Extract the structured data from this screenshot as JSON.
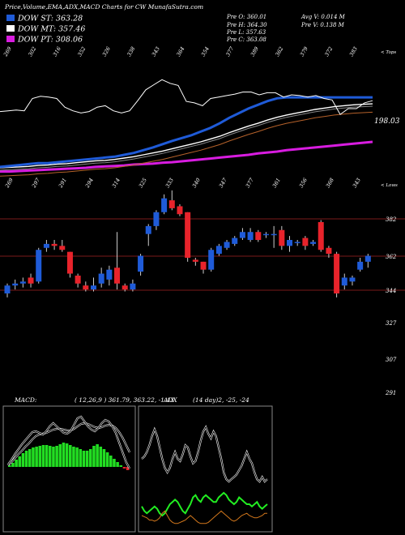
{
  "header": {
    "title": "Price,Volume,EMA,ADX,MACD Charts for CW MunafaSutra.com",
    "legend": [
      {
        "label": "DOW ST: 363.28",
        "color": "#1f5bd8"
      },
      {
        "label": "DOW MT: 357.46",
        "color": "#ffffff"
      },
      {
        "label": "DOW PT: 308.06",
        "color": "#d81ce0"
      }
    ],
    "stats": {
      "pre_o": "Pre  O: 360.01",
      "pre_h": "Pre  H: 364.30",
      "pre_l": "Pre  L: 357.63",
      "pre_c": "Pre  C: 363.08",
      "avg_v": "Avg V: 0.014  M",
      "pre_v": "Pre  V: 0.138  M"
    }
  },
  "colors": {
    "bg": "#000000",
    "up": "#1f5bd8",
    "down": "#e8232b",
    "ema_short": "#1f5bd8",
    "ema_mid": "#ffffff",
    "ema_long": "#b5612a",
    "ema_pt": "#d81ce0",
    "grid": "#7a1a1a",
    "macd_fill": "#22dd22",
    "adx_green": "#22ee22",
    "adx_orange": "#d4781c"
  },
  "chart_data": [
    {
      "type": "line",
      "panel": "ema",
      "top_labels": [
        "269",
        "302",
        "316",
        "352",
        "326",
        "338",
        "343",
        "364",
        "354",
        "377",
        "389",
        "362",
        "379",
        "372",
        "383"
      ],
      "bottom_labels": [
        "269",
        "297",
        "291",
        "294",
        "314",
        "325",
        "333",
        "340",
        "347",
        "377",
        "361",
        "356",
        "368",
        "343"
      ],
      "corner_top": "< Tops",
      "corner_bottom": "< Lows",
      "price_label": "198.03",
      "series": [
        {
          "name": "DOW ST",
          "values": [
            206,
            208,
            210,
            212,
            214,
            214,
            216,
            218,
            220,
            222,
            224,
            226,
            228,
            232,
            236,
            242,
            248,
            255,
            262,
            268,
            274,
            282,
            290,
            300,
            312,
            322,
            332,
            340,
            348,
            354,
            356,
            356,
            356,
            356,
            356,
            356,
            356,
            356,
            356,
            356
          ]
        },
        {
          "name": "DOW MT",
          "values": [
            204,
            205,
            206,
            207,
            209,
            210,
            212,
            213,
            215,
            217,
            219,
            220,
            222,
            225,
            228,
            232,
            236,
            240,
            245,
            250,
            255,
            260,
            266,
            272,
            280,
            287,
            294,
            300,
            307,
            313,
            318,
            322,
            326,
            330,
            333,
            336,
            338,
            340,
            341,
            342
          ]
        },
        {
          "name": "DOW PT",
          "values": [
            196,
            196,
            197,
            198,
            199,
            200,
            201,
            202,
            203,
            204,
            206,
            207,
            208,
            209,
            211,
            212,
            213,
            215,
            216,
            218,
            220,
            222,
            224,
            226,
            228,
            230,
            232,
            235,
            237,
            239,
            242,
            244,
            246,
            248,
            250,
            252,
            254,
            256,
            258,
            260
          ]
        }
      ]
    },
    {
      "type": "candlestick",
      "panel": "price",
      "y_ticks": [
        "382",
        "362",
        "344",
        "327",
        "307",
        "291"
      ],
      "candles": [
        {
          "o": 344,
          "c": 348,
          "h": 349,
          "l": 342
        },
        {
          "o": 348,
          "c": 349,
          "h": 351,
          "l": 346
        },
        {
          "o": 349,
          "c": 350,
          "h": 352,
          "l": 347
        },
        {
          "o": 352,
          "c": 349,
          "h": 354,
          "l": 347
        },
        {
          "o": 350,
          "c": 366,
          "h": 367,
          "l": 349
        },
        {
          "o": 367,
          "c": 369,
          "h": 371,
          "l": 365
        },
        {
          "o": 369,
          "c": 368,
          "h": 371,
          "l": 366
        },
        {
          "o": 368,
          "c": 366,
          "h": 371,
          "l": 365
        },
        {
          "o": 365,
          "c": 354,
          "h": 365,
          "l": 352
        },
        {
          "o": 353,
          "c": 349,
          "h": 354,
          "l": 347
        },
        {
          "o": 348,
          "c": 346,
          "h": 350,
          "l": 345
        },
        {
          "o": 346,
          "c": 348,
          "h": 352,
          "l": 345
        },
        {
          "o": 349,
          "c": 354,
          "h": 357,
          "l": 347
        },
        {
          "o": 351,
          "c": 356,
          "h": 358,
          "l": 348
        },
        {
          "o": 357,
          "c": 349,
          "h": 375,
          "l": 346
        },
        {
          "o": 348,
          "c": 346,
          "h": 349,
          "l": 345
        },
        {
          "o": 346,
          "c": 349,
          "h": 351,
          "l": 345
        },
        {
          "o": 355,
          "c": 363,
          "h": 364,
          "l": 353
        },
        {
          "o": 374,
          "c": 378,
          "h": 379,
          "l": 368
        },
        {
          "o": 378,
          "c": 385,
          "h": 386,
          "l": 376
        },
        {
          "o": 385,
          "c": 392,
          "h": 394,
          "l": 384
        },
        {
          "o": 391,
          "c": 387,
          "h": 396,
          "l": 386
        },
        {
          "o": 388,
          "c": 384,
          "h": 389,
          "l": 383
        },
        {
          "o": 385,
          "c": 362,
          "h": 385,
          "l": 360
        },
        {
          "o": 361,
          "c": 360,
          "h": 362,
          "l": 358
        },
        {
          "o": 360,
          "c": 356,
          "h": 360,
          "l": 354
        },
        {
          "o": 356,
          "c": 366,
          "h": 367,
          "l": 355
        },
        {
          "o": 364,
          "c": 368,
          "h": 369,
          "l": 363
        },
        {
          "o": 367,
          "c": 370,
          "h": 371,
          "l": 366
        },
        {
          "o": 369,
          "c": 372,
          "h": 373,
          "l": 368
        },
        {
          "o": 372,
          "c": 375,
          "h": 377,
          "l": 371
        },
        {
          "o": 371,
          "c": 375,
          "h": 377,
          "l": 370
        },
        {
          "o": 375,
          "c": 371,
          "h": 376,
          "l": 370
        },
        {
          "o": 374,
          "c": 374,
          "h": 375,
          "l": 372
        },
        {
          "o": 374,
          "c": 374,
          "h": 378,
          "l": 367
        },
        {
          "o": 376,
          "c": 368,
          "h": 378,
          "l": 366
        },
        {
          "o": 368,
          "c": 371,
          "h": 373,
          "l": 365
        },
        {
          "o": 370,
          "c": 370,
          "h": 371,
          "l": 368
        },
        {
          "o": 372,
          "c": 368,
          "h": 373,
          "l": 366
        },
        {
          "o": 369,
          "c": 370,
          "h": 371,
          "l": 368
        },
        {
          "o": 380,
          "c": 366,
          "h": 381,
          "l": 365
        },
        {
          "o": 367,
          "c": 364,
          "h": 368,
          "l": 362
        },
        {
          "o": 364,
          "c": 344,
          "h": 365,
          "l": 342
        },
        {
          "o": 348,
          "c": 352,
          "h": 354,
          "l": 346
        },
        {
          "o": 350,
          "c": 352,
          "h": 353,
          "l": 348
        },
        {
          "o": 356,
          "c": 360,
          "h": 362,
          "l": 355
        },
        {
          "o": 360,
          "c": 363,
          "h": 364,
          "l": 357
        }
      ]
    },
    {
      "type": "line",
      "panel": "macd",
      "label": "MACD:",
      "params": "( 12,26,9 ) 361.79, 363.22, -1.43",
      "histogram": [
        2,
        5,
        9,
        13,
        17,
        20,
        22,
        24,
        25,
        26,
        27,
        27,
        26,
        25,
        26,
        28,
        30,
        29,
        27,
        25,
        24,
        22,
        20,
        20,
        22,
        26,
        28,
        25,
        22,
        18,
        14,
        10,
        6,
        2,
        -2,
        -4
      ],
      "macd": [
        3,
        9,
        16,
        22,
        28,
        33,
        38,
        43,
        44,
        42,
        40,
        44,
        50,
        54,
        50,
        46,
        42,
        41,
        44,
        52,
        60,
        62,
        56,
        50,
        46,
        44,
        48,
        54,
        58,
        56,
        50,
        42,
        30,
        18,
        6,
        -2
      ],
      "signal": [
        2,
        6,
        11,
        16,
        20,
        25,
        29,
        34,
        38,
        40,
        41,
        42,
        44,
        46,
        47,
        47,
        46,
        45,
        45,
        47,
        50,
        53,
        54,
        53,
        51,
        49,
        48,
        49,
        51,
        52,
        51,
        48,
        43,
        36,
        27,
        18
      ]
    },
    {
      "type": "line",
      "panel": "adx",
      "label": "ADX",
      "params": "(14 day)2, -25, -24",
      "adx": [
        60,
        62,
        66,
        72,
        80,
        86,
        80,
        70,
        60,
        52,
        48,
        52,
        60,
        66,
        60,
        58,
        64,
        72,
        70,
        62,
        56,
        58,
        66,
        76,
        84,
        88,
        82,
        78,
        84,
        80,
        70,
        60,
        48,
        42,
        40,
        42,
        44,
        46,
        50,
        54,
        60,
        66,
        60,
        56,
        48,
        42,
        40,
        44,
        40,
        42
      ],
      "di_plus": [
        18,
        14,
        12,
        14,
        16,
        18,
        16,
        12,
        10,
        12,
        16,
        20,
        22,
        24,
        22,
        18,
        14,
        12,
        16,
        20,
        26,
        28,
        24,
        22,
        26,
        28,
        26,
        24,
        22,
        22,
        26,
        28,
        30,
        28,
        24,
        22,
        20,
        22,
        26,
        24,
        22,
        20,
        20,
        18,
        20,
        22,
        18,
        16,
        18,
        20
      ],
      "di_minus": [
        10,
        9,
        8,
        6,
        6,
        5,
        6,
        8,
        12,
        14,
        10,
        6,
        4,
        3,
        3,
        4,
        5,
        6,
        8,
        10,
        8,
        6,
        4,
        3,
        3,
        3,
        4,
        6,
        8,
        10,
        12,
        14,
        12,
        10,
        8,
        6,
        5,
        6,
        8,
        10,
        11,
        12,
        10,
        9,
        8,
        8,
        9,
        10,
        12,
        12
      ]
    }
  ]
}
